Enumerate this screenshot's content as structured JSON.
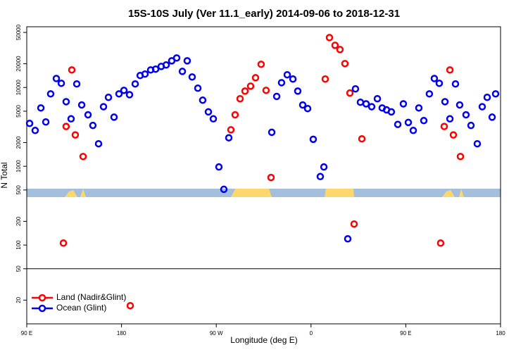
{
  "chart_data": {
    "type": "scatter",
    "title": "15S-10S July (Ver 11.1_early)   2014-09-06 to 2018-12-31",
    "x_label": "Longitude (deg E)",
    "y_label": "N Total",
    "xlim": [
      90,
      540
    ],
    "ylim": [
      10,
      59000
    ],
    "log_y": true,
    "legend": "bottom-left",
    "reference_line": 50,
    "xticks": [
      {
        "value": 90,
        "label": "90 E"
      },
      180,
      {
        "value": 270,
        "label": "90 W"
      },
      {
        "value": 360,
        "label": "0"
      },
      {
        "value": 450,
        "label": "90 E"
      },
      {
        "value": 540,
        "label": "180"
      }
    ],
    "yticks": [
      20,
      50,
      100,
      200,
      500,
      1000,
      2000,
      5000,
      10000,
      20000,
      50000
    ],
    "series": [
      {
        "name": "Land (Nadir&Glint)",
        "color": "#ff0000",
        "x": [
          124.8,
          127.4,
          132.8,
          136.1,
          143.5,
          188.3,
          283.9,
          287.9,
          292.6,
          297.3,
          302.6,
          307.3,
          312.6,
          317.3,
          322.0,
          373.5,
          377.5,
          382.8,
          387.5,
          392.2,
          396.9,
          400.9,
          408.3,
          483.1,
          486.5,
          491.9,
          495.2,
          501.9
        ],
        "values": [
          106,
          3200,
          16700,
          2500,
          1330,
          17,
          2900,
          4500,
          7200,
          9000,
          10400,
          13300,
          19700,
          9200,
          720,
          12800,
          43000,
          34300,
          30300,
          20100,
          8500,
          185,
          2230,
          106,
          3200,
          16700,
          2500,
          1330
        ]
      },
      {
        "name": "Ocean (Glint)",
        "color": "#0000ee",
        "x": [
          92.7,
          98.0,
          103.4,
          108.1,
          112.7,
          118.1,
          122.8,
          127.4,
          132.1,
          137.5,
          142.2,
          148.2,
          152.8,
          158.2,
          162.9,
          167.6,
          172.9,
          177.6,
          182.3,
          187.6,
          193.0,
          197.7,
          202.3,
          207.7,
          212.4,
          217.7,
          222.4,
          227.7,
          232.4,
          237.8,
          242.4,
          247.1,
          252.5,
          257.1,
          262.5,
          267.2,
          272.5,
          277.2,
          281.9,
          322.7,
          327.4,
          332.0,
          337.4,
          342.8,
          347.4,
          352.1,
          356.8,
          362.1,
          368.8,
          372.2,
          394.9,
          402.2,
          406.9,
          412.3,
          417.6,
          423.0,
          427.6,
          431.7,
          436.3,
          442.4,
          447.7,
          452.4,
          457.1,
          462.4,
          467.1,
          472.4,
          477.1,
          481.8,
          487.2,
          491.9,
          497.2,
          501.2,
          507.2,
          511.9,
          517.9,
          522.6,
          527.3,
          532.0,
          535.3
        ],
        "values": [
          3500,
          2850,
          5500,
          3650,
          8300,
          13000,
          11300,
          6600,
          4000,
          11100,
          6000,
          4500,
          3300,
          1930,
          5700,
          7500,
          4200,
          8300,
          9200,
          8100,
          11100,
          14200,
          14800,
          16700,
          17100,
          18500,
          19300,
          21800,
          23700,
          16000,
          21800,
          13600,
          9800,
          6900,
          4900,
          4000,
          980,
          510,
          2300,
          2700,
          7700,
          11500,
          14500,
          12800,
          9000,
          6000,
          5400,
          2200,
          740,
          980,
          120,
          9600,
          6500,
          6200,
          5700,
          7200,
          5500,
          5200,
          4900,
          3400,
          6200,
          3600,
          2850,
          5500,
          3800,
          8300,
          13000,
          11300,
          6600,
          4000,
          11100,
          6000,
          4500,
          3300,
          1930,
          5700,
          7500,
          4200,
          8300
        ]
      }
    ]
  }
}
